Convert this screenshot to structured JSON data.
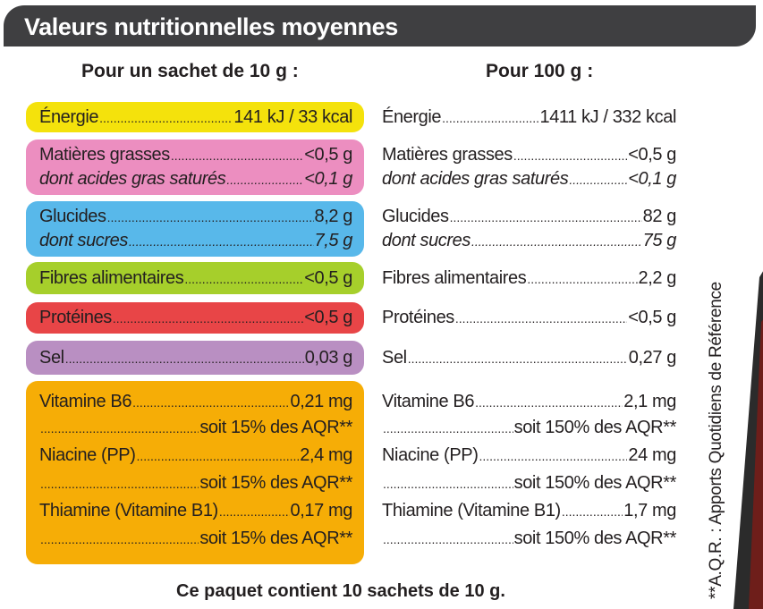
{
  "title": "Valeurs nutritionnelles moyennes",
  "headers": {
    "per_sachet": "Pour un sachet de 10 g :",
    "per_100g": "Pour 100 g :"
  },
  "colors": {
    "title_bar": "#3f3f41",
    "energie": "#f4e20c",
    "matieres_grasses": "#ec8ec0",
    "glucides": "#58b8ea",
    "fibres": "#a6cf2b",
    "proteines": "#e84547",
    "sel": "#b98fc2",
    "vitamines": "#f6ad06"
  },
  "rows": {
    "energie": {
      "label": "Énergie",
      "per_sachet": "141 kJ / 33 kcal",
      "per_100g": "1411 kJ / 332 kcal"
    },
    "matieres_grasses": {
      "label": "Matières grasses",
      "per_sachet": "<0,5 g",
      "per_100g": "<0,5 g"
    },
    "acides_gras_satures": {
      "label": "dont acides gras saturés",
      "per_sachet": "<0,1 g",
      "per_100g": "<0,1 g"
    },
    "glucides": {
      "label": "Glucides",
      "per_sachet": "8,2 g",
      "per_100g": "82 g"
    },
    "sucres": {
      "label": "dont sucres",
      "per_sachet": "7,5 g",
      "per_100g": "75 g"
    },
    "fibres": {
      "label": "Fibres alimentaires",
      "per_sachet": "<0,5 g",
      "per_100g": "2,2 g"
    },
    "proteines": {
      "label": "Protéines",
      "per_sachet": "<0,5 g",
      "per_100g": "<0,5 g"
    },
    "sel": {
      "label": "Sel",
      "per_sachet": "0,03 g",
      "per_100g": "0,27 g"
    },
    "vitamine_b6": {
      "label": "Vitamine B6",
      "per_sachet": "0,21 mg",
      "per_100g": "2,1 mg",
      "aqr_sachet": "soit 15% des AQR**",
      "aqr_100g": "soit 150% des AQR**"
    },
    "niacine": {
      "label": "Niacine (PP)",
      "per_sachet": "2,4 mg",
      "per_100g": "24 mg",
      "aqr_sachet": "soit 15% des AQR**",
      "aqr_100g": "soit 150% des AQR**"
    },
    "thiamine": {
      "label": "Thiamine (Vitamine B1)",
      "per_sachet": "0,17 mg",
      "per_100g": "1,7 mg",
      "aqr_sachet": "soit 15% des AQR**",
      "aqr_100g": "soit 150% des AQR**"
    }
  },
  "aqr_note": "**A.Q.R. : Apports Quotidiens de Référence",
  "footer": "Ce paquet contient 10 sachets de 10 g."
}
